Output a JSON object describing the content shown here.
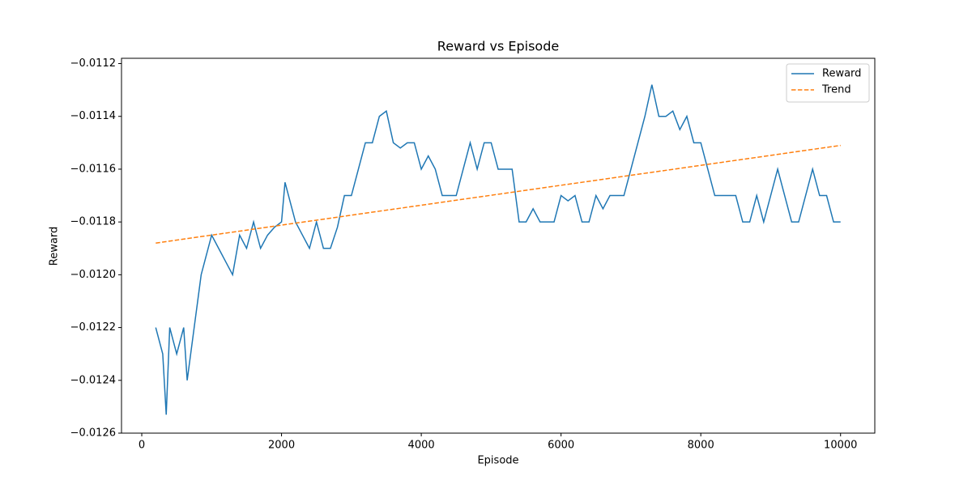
{
  "chart_data": {
    "type": "line",
    "title": "Reward vs Episode",
    "xlabel": "Episode",
    "ylabel": "Reward",
    "xlim": [
      -290,
      10490
    ],
    "ylim": [
      -0.0126,
      -0.01118
    ],
    "xticks": [
      0,
      2000,
      4000,
      6000,
      8000,
      10000
    ],
    "yticks": [
      {
        "value": -0.0126,
        "label": "−0.0126"
      },
      {
        "value": -0.0124,
        "label": "−0.0124"
      },
      {
        "value": -0.0122,
        "label": "−0.0122"
      },
      {
        "value": -0.012,
        "label": "−0.0120"
      },
      {
        "value": -0.0118,
        "label": "−0.0118"
      },
      {
        "value": -0.0116,
        "label": "−0.0116"
      },
      {
        "value": -0.0114,
        "label": "−0.0114"
      },
      {
        "value": -0.0112,
        "label": "−0.0112"
      }
    ],
    "legend": "upper right",
    "grid": false,
    "series": [
      {
        "name": "Reward",
        "color": "#1f77b4",
        "dashed": false,
        "x": [
          200,
          300,
          350,
          400,
          500,
          600,
          650,
          700,
          750,
          800,
          850,
          900,
          1000,
          1100,
          1200,
          1300,
          1400,
          1500,
          1600,
          1700,
          1800,
          1900,
          2000,
          2050,
          2100,
          2200,
          2300,
          2400,
          2500,
          2600,
          2700,
          2800,
          2900,
          3000,
          3100,
          3200,
          3300,
          3400,
          3500,
          3600,
          3700,
          3800,
          3900,
          4000,
          4100,
          4200,
          4300,
          4400,
          4500,
          4600,
          4700,
          4800,
          4900,
          5000,
          5100,
          5200,
          5300,
          5400,
          5500,
          5600,
          5700,
          5800,
          5900,
          6000,
          6100,
          6200,
          6300,
          6400,
          6500,
          6600,
          6700,
          6800,
          6900,
          7000,
          7100,
          7200,
          7300,
          7400,
          7500,
          7600,
          7700,
          7800,
          7900,
          8000,
          8100,
          8200,
          8300,
          8400,
          8500,
          8600,
          8700,
          8800,
          8900,
          9000,
          9100,
          9200,
          9300,
          9400,
          9500,
          9600,
          9700,
          9800,
          9900,
          10000
        ],
        "values": [
          -0.0122,
          -0.0123,
          -0.01253,
          -0.0122,
          -0.0123,
          -0.0122,
          -0.0124,
          -0.0123,
          -0.0122,
          -0.0121,
          -0.012,
          -0.01195,
          -0.01185,
          -0.0119,
          -0.01195,
          -0.012,
          -0.01185,
          -0.0119,
          -0.0118,
          -0.0119,
          -0.01185,
          -0.01182,
          -0.0118,
          -0.01165,
          -0.0117,
          -0.0118,
          -0.01185,
          -0.0119,
          -0.0118,
          -0.0119,
          -0.0119,
          -0.01182,
          -0.0117,
          -0.0117,
          -0.0116,
          -0.0115,
          -0.0115,
          -0.0114,
          -0.01138,
          -0.0115,
          -0.01152,
          -0.0115,
          -0.0115,
          -0.0116,
          -0.01155,
          -0.0116,
          -0.0117,
          -0.0117,
          -0.0117,
          -0.0116,
          -0.0115,
          -0.0116,
          -0.0115,
          -0.0115,
          -0.0116,
          -0.0116,
          -0.0116,
          -0.0118,
          -0.0118,
          -0.01175,
          -0.0118,
          -0.0118,
          -0.0118,
          -0.0117,
          -0.01172,
          -0.0117,
          -0.0118,
          -0.0118,
          -0.0117,
          -0.01175,
          -0.0117,
          -0.0117,
          -0.0117,
          -0.0116,
          -0.0115,
          -0.0114,
          -0.01128,
          -0.0114,
          -0.0114,
          -0.01138,
          -0.01145,
          -0.0114,
          -0.0115,
          -0.0115,
          -0.0116,
          -0.0117,
          -0.0117,
          -0.0117,
          -0.0117,
          -0.0118,
          -0.0118,
          -0.0117,
          -0.0118,
          -0.0117,
          -0.0116,
          -0.0117,
          -0.0118,
          -0.0118,
          -0.0117,
          -0.0116,
          -0.0117,
          -0.0117,
          -0.0118,
          -0.0118
        ]
      },
      {
        "name": "Trend",
        "color": "#ff7f0e",
        "dashed": true,
        "x": [
          200,
          10000
        ],
        "values": [
          -0.01188,
          -0.01151
        ]
      }
    ]
  }
}
